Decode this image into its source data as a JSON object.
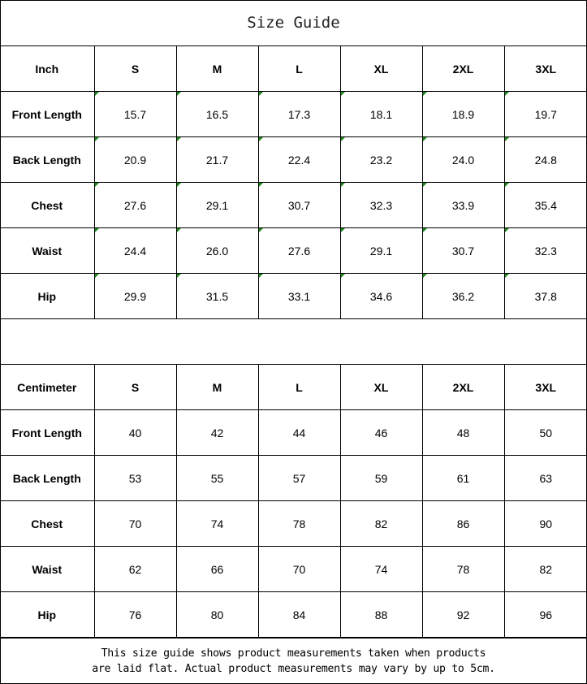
{
  "title": "Size Guide",
  "sizes": [
    "S",
    "M",
    "L",
    "XL",
    "2XL",
    "3XL"
  ],
  "inch": {
    "unit_label": "Inch",
    "rows": [
      {
        "label": "Front Length",
        "values": [
          "15.7",
          "16.5",
          "17.3",
          "18.1",
          "18.9",
          "19.7"
        ]
      },
      {
        "label": "Back Length",
        "values": [
          "20.9",
          "21.7",
          "22.4",
          "23.2",
          "24.0",
          "24.8"
        ]
      },
      {
        "label": "Chest",
        "values": [
          "27.6",
          "29.1",
          "30.7",
          "32.3",
          "33.9",
          "35.4"
        ]
      },
      {
        "label": "Waist",
        "values": [
          "24.4",
          "26.0",
          "27.6",
          "29.1",
          "30.7",
          "32.3"
        ]
      },
      {
        "label": "Hip",
        "values": [
          "29.9",
          "31.5",
          "33.1",
          "34.6",
          "36.2",
          "37.8"
        ]
      }
    ]
  },
  "cm": {
    "unit_label": "Centimeter",
    "rows": [
      {
        "label": "Front Length",
        "values": [
          "40",
          "42",
          "44",
          "46",
          "48",
          "50"
        ]
      },
      {
        "label": "Back Length",
        "values": [
          "53",
          "55",
          "57",
          "59",
          "61",
          "63"
        ]
      },
      {
        "label": "Chest",
        "values": [
          "70",
          "74",
          "78",
          "82",
          "86",
          "90"
        ]
      },
      {
        "label": "Waist",
        "values": [
          "62",
          "66",
          "70",
          "74",
          "78",
          "82"
        ]
      },
      {
        "label": "Hip",
        "values": [
          "76",
          "80",
          "84",
          "88",
          "92",
          "96"
        ]
      }
    ]
  },
  "note": {
    "line1": "This size guide shows product measurements taken when products",
    "line2": "are laid flat. Actual product measurements may vary by up to 5cm."
  },
  "colors": {
    "cell_marker": "#1a8a1a"
  }
}
